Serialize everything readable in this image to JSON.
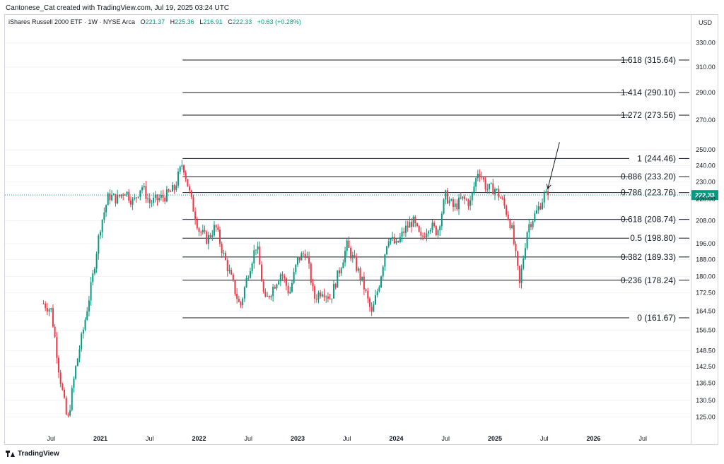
{
  "header": {
    "credit": "Cantonese_Cat created with TradingView.com, Jul 19, 2025 03:24 UTC"
  },
  "legend": {
    "symbol": "iShares Russell 2000 ETF · 1W · NYSE Arca",
    "open_key": "O",
    "open": "221.37",
    "high_key": "H",
    "high": "225.36",
    "low_key": "L",
    "low": "216.91",
    "close_key": "C",
    "close": "222.33",
    "change": "+0.63 (+0.28%)"
  },
  "price_scale": {
    "currency": "USD"
  },
  "brand": {
    "name": "TradingView"
  },
  "colors": {
    "up": "#089981",
    "down": "#f23645",
    "fib_line": "#131722",
    "grid": "#ffffff",
    "last_price": "#089981"
  },
  "chart_data": {
    "type": "candlestick",
    "symbol": "IWM",
    "interval": "1W",
    "y_scale": "log",
    "yticks": [
      {
        "label": "330.00",
        "value": 330
      },
      {
        "label": "310.00",
        "value": 310
      },
      {
        "label": "290.00",
        "value": 290
      },
      {
        "label": "270.00",
        "value": 270
      },
      {
        "label": "250.00",
        "value": 250
      },
      {
        "label": "240.00",
        "value": 240
      },
      {
        "label": "230.00",
        "value": 230
      },
      {
        "label": "220.00",
        "value": 220
      },
      {
        "label": "208.00",
        "value": 208
      },
      {
        "label": "196.00",
        "value": 196
      },
      {
        "label": "188.00",
        "value": 188
      },
      {
        "label": "180.00",
        "value": 180
      },
      {
        "label": "172.50",
        "value": 172.5
      },
      {
        "label": "164.50",
        "value": 164.5
      },
      {
        "label": "156.50",
        "value": 156.5
      },
      {
        "label": "148.50",
        "value": 148.5
      },
      {
        "label": "142.50",
        "value": 142.5
      },
      {
        "label": "136.50",
        "value": 136.5
      },
      {
        "label": "130.50",
        "value": 130.5
      },
      {
        "label": "125.00",
        "value": 125
      }
    ],
    "xticks": [
      {
        "label": "Jul",
        "date": "2020-07"
      },
      {
        "label": "2021",
        "date": "2021-01"
      },
      {
        "label": "Jul",
        "date": "2021-07"
      },
      {
        "label": "2022",
        "date": "2022-01"
      },
      {
        "label": "Jul",
        "date": "2022-07"
      },
      {
        "label": "2023",
        "date": "2023-01"
      },
      {
        "label": "Jul",
        "date": "2023-07"
      },
      {
        "label": "2024",
        "date": "2024-01"
      },
      {
        "label": "Jul",
        "date": "2024-07"
      },
      {
        "label": "2025",
        "date": "2025-01"
      },
      {
        "label": "Jul",
        "date": "2025-07"
      },
      {
        "label": "2026",
        "date": "2026-01"
      },
      {
        "label": "Jul",
        "date": "2026-07"
      }
    ],
    "last_price": {
      "label": "222.33",
      "value": 222.33
    },
    "fib_levels": [
      {
        "label": "1.618 (315.64)",
        "value": 315.64
      },
      {
        "label": "1.414 (290.10)",
        "value": 290.1
      },
      {
        "label": "1.272 (273.56)",
        "value": 273.56
      },
      {
        "label": "1 (244.46)",
        "value": 244.46
      },
      {
        "label": "0.886 (233.20)",
        "value": 233.2
      },
      {
        "label": "0.786 (223.76)",
        "value": 223.76
      },
      {
        "label": "0.618 (208.74)",
        "value": 208.74
      },
      {
        "label": "0.5 (198.80)",
        "value": 198.8
      },
      {
        "label": "0.382 (189.33)",
        "value": 189.33
      },
      {
        "label": "0.236 (178.24)",
        "value": 178.24
      },
      {
        "label": "0 (161.67)",
        "value": 161.67
      }
    ],
    "fib_start_date": "2021-11",
    "arrow_annotation": {
      "from": {
        "date": "2025-08",
        "value": 255
      },
      "to": {
        "date": "2025-07",
        "value": 226
      }
    },
    "price_path": [
      [
        "2020-06",
        168
      ],
      [
        "2020-07",
        165
      ],
      [
        "2020-08",
        140
      ],
      [
        "2020-09",
        123
      ],
      [
        "2020-10",
        142
      ],
      [
        "2020-11",
        158
      ],
      [
        "2020-12",
        178
      ],
      [
        "2021-01",
        205
      ],
      [
        "2021-02",
        222
      ],
      [
        "2021-03",
        220
      ],
      [
        "2021-04",
        225
      ],
      [
        "2021-05",
        218
      ],
      [
        "2021-06",
        228
      ],
      [
        "2021-07",
        218
      ],
      [
        "2021-08",
        220
      ],
      [
        "2021-09",
        222
      ],
      [
        "2021-10",
        226
      ],
      [
        "2021-11",
        242
      ],
      [
        "2021-12",
        220
      ],
      [
        "2022-01",
        203
      ],
      [
        "2022-02",
        198
      ],
      [
        "2022-03",
        205
      ],
      [
        "2022-04",
        190
      ],
      [
        "2022-05",
        178
      ],
      [
        "2022-06",
        166
      ],
      [
        "2022-07",
        182
      ],
      [
        "2022-08",
        196
      ],
      [
        "2022-09",
        168
      ],
      [
        "2022-10",
        175
      ],
      [
        "2022-11",
        182
      ],
      [
        "2022-12",
        172
      ],
      [
        "2023-01",
        188
      ],
      [
        "2023-02",
        192
      ],
      [
        "2023-03",
        170
      ],
      [
        "2023-04",
        174
      ],
      [
        "2023-05",
        170
      ],
      [
        "2023-06",
        182
      ],
      [
        "2023-07",
        195
      ],
      [
        "2023-08",
        186
      ],
      [
        "2023-09",
        176
      ],
      [
        "2023-10",
        163
      ],
      [
        "2023-11",
        178
      ],
      [
        "2023-12",
        200
      ],
      [
        "2024-01",
        195
      ],
      [
        "2024-02",
        203
      ],
      [
        "2024-03",
        208
      ],
      [
        "2024-04",
        198
      ],
      [
        "2024-05",
        206
      ],
      [
        "2024-06",
        202
      ],
      [
        "2024-07",
        222
      ],
      [
        "2024-08",
        215
      ],
      [
        "2024-09",
        220
      ],
      [
        "2024-10",
        218
      ],
      [
        "2024-11",
        238
      ],
      [
        "2024-12",
        226
      ],
      [
        "2025-01",
        226
      ],
      [
        "2025-02",
        218
      ],
      [
        "2025-03",
        205
      ],
      [
        "2025-04",
        176
      ],
      [
        "2025-05",
        205
      ],
      [
        "2025-06",
        212
      ],
      [
        "2025-07",
        222
      ]
    ]
  }
}
